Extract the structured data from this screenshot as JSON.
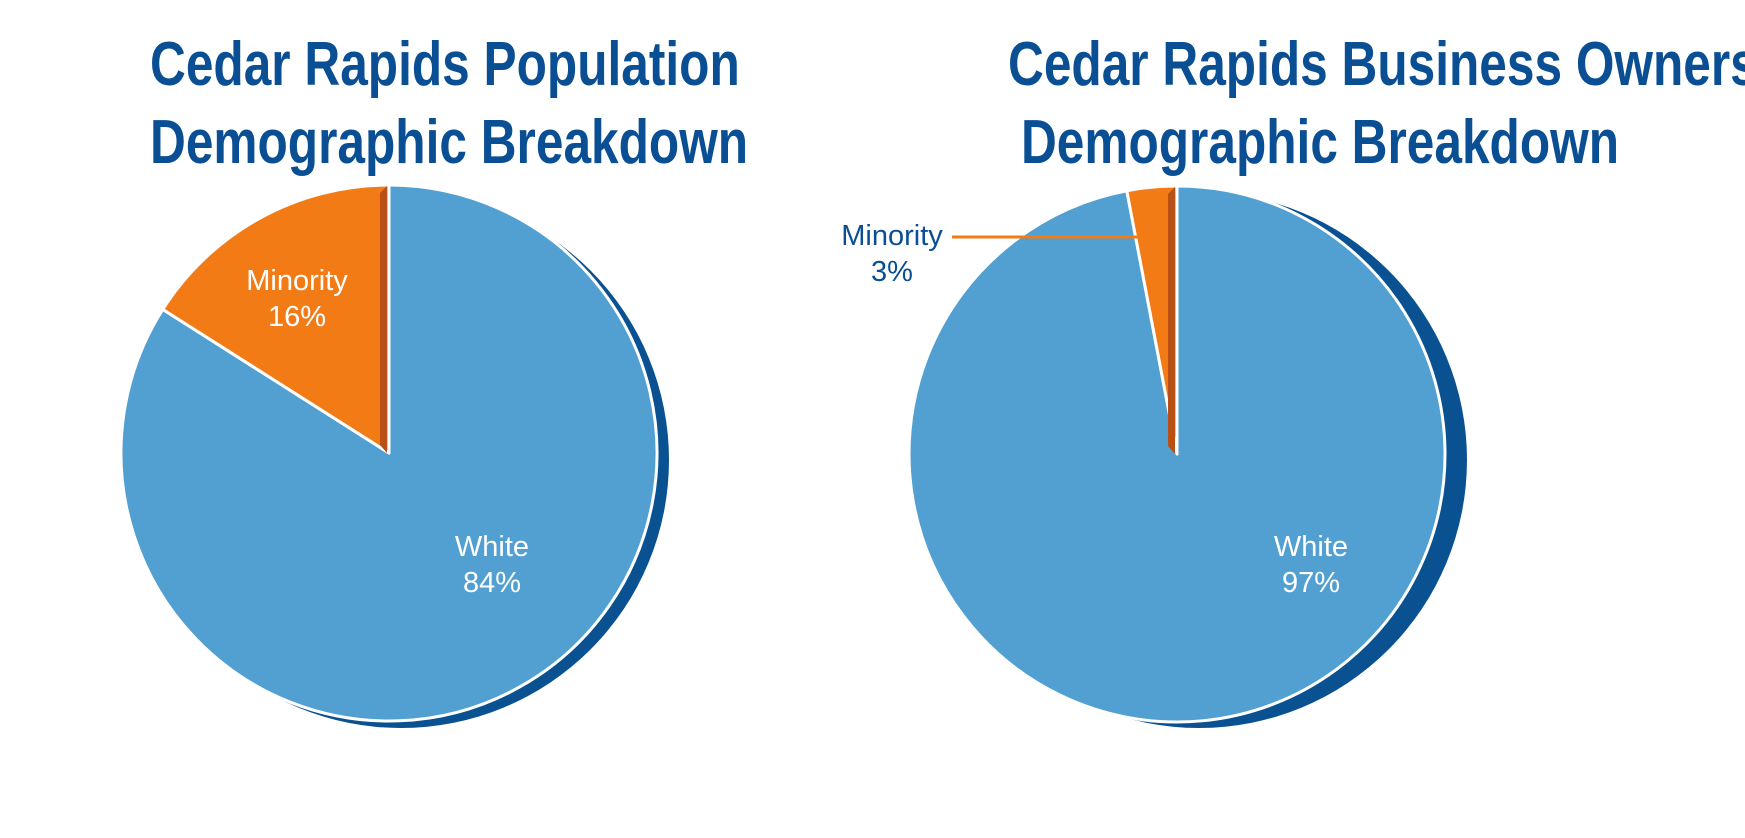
{
  "colors": {
    "white_slice": "#529fd2",
    "white_shadow": "#0a5191",
    "minority_slice": "#f27b16",
    "minority_shadow": "#b95015",
    "title": "#0a4f94",
    "inner_label": "#ffffff",
    "outer_label": "#0a4f94"
  },
  "chart_data": [
    {
      "type": "pie",
      "title": "Cedar Rapids Population Demographic Breakdown",
      "title_lines": [
        "Cedar Rapids Population",
        "Demographic Breakdown"
      ],
      "slices": [
        {
          "name": "Minority",
          "value": 16,
          "label": "16%"
        },
        {
          "name": "White",
          "value": 84,
          "label": "84%"
        }
      ]
    },
    {
      "type": "pie",
      "title": "Cedar Rapids Business Ownership Demographic Breakdown",
      "title_lines": [
        "Cedar Rapids Business Ownership",
        "Demographic Breakdown"
      ],
      "slices": [
        {
          "name": "Minority",
          "value": 3,
          "label": "3%"
        },
        {
          "name": "White",
          "value": 97,
          "label": "97%"
        }
      ]
    }
  ]
}
